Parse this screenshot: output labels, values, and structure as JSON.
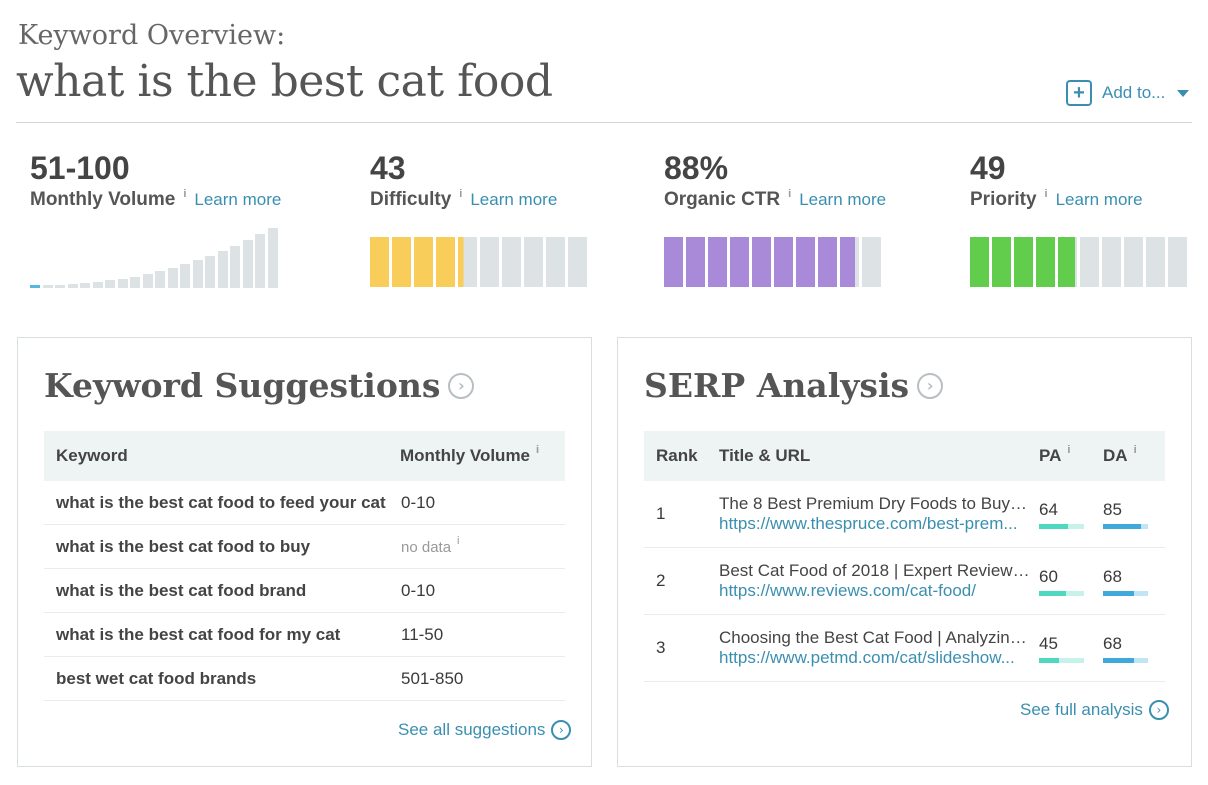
{
  "header": {
    "subtitle": "Keyword Overview:",
    "keyword": "what is the best cat food",
    "add_to_label": "Add to..."
  },
  "metrics": {
    "volume": {
      "value": "51-100",
      "label": "Monthly Volume",
      "info": "i",
      "learn": "Learn more"
    },
    "difficulty": {
      "value": "43",
      "label": "Difficulty",
      "info": "i",
      "learn": "Learn more",
      "score": 43,
      "color": "#f8cd5a"
    },
    "ctr": {
      "value": "88%",
      "label": "Organic CTR",
      "info": "i",
      "learn": "Learn more",
      "score": 88,
      "color": "#a98ad9"
    },
    "priority": {
      "value": "49",
      "label": "Priority",
      "info": "i",
      "learn": "Learn more",
      "score": 49,
      "color": "#62cc4c"
    }
  },
  "volume_chart": {
    "bar_count": 20,
    "highlight_index": 0,
    "highlight_color": "#58b7e0",
    "base_color": "#dde3e4"
  },
  "suggestions": {
    "title": "Keyword Suggestions",
    "columns": {
      "keyword": "Keyword",
      "volume": "Monthly Volume",
      "info": "i"
    },
    "rows": [
      {
        "keyword": "what is the best cat food to feed your cat",
        "volume": "0-10"
      },
      {
        "keyword": "what is the best cat food to buy",
        "volume": "no data",
        "info": "i"
      },
      {
        "keyword": "what is the best cat food brand",
        "volume": "0-10"
      },
      {
        "keyword": "what is the best cat food for my cat",
        "volume": "11-50"
      },
      {
        "keyword": "best wet cat food brands",
        "volume": "501-850"
      }
    ],
    "see_all": "See all suggestions"
  },
  "serp": {
    "title": "SERP Analysis",
    "columns": {
      "rank": "Rank",
      "title_url": "Title & URL",
      "pa": "PA",
      "da": "DA",
      "info": "i"
    },
    "pa_color": "#4fd8c0",
    "pa_track": "#c6f2ea",
    "da_color": "#3fa9dc",
    "da_track": "#c2e5f5",
    "rows": [
      {
        "rank": "1",
        "title": "The 8 Best Premium Dry Foods to Buy f...",
        "url": "https://www.thespruce.com/best-prem...",
        "pa": 64,
        "da": 85
      },
      {
        "rank": "2",
        "title": "Best Cat Food of 2018 | Expert Reviews...",
        "url": "https://www.reviews.com/cat-food/",
        "pa": 60,
        "da": 68
      },
      {
        "rank": "3",
        "title": "Choosing the Best Cat Food | Analyzing...",
        "url": "https://www.petmd.com/cat/slideshow...",
        "pa": 45,
        "da": 68
      }
    ],
    "see_full": "See full analysis"
  },
  "icons": {
    "plus": "plus-icon",
    "caret": "caret-down-icon",
    "chevron": "chevron-right-circle-icon"
  }
}
